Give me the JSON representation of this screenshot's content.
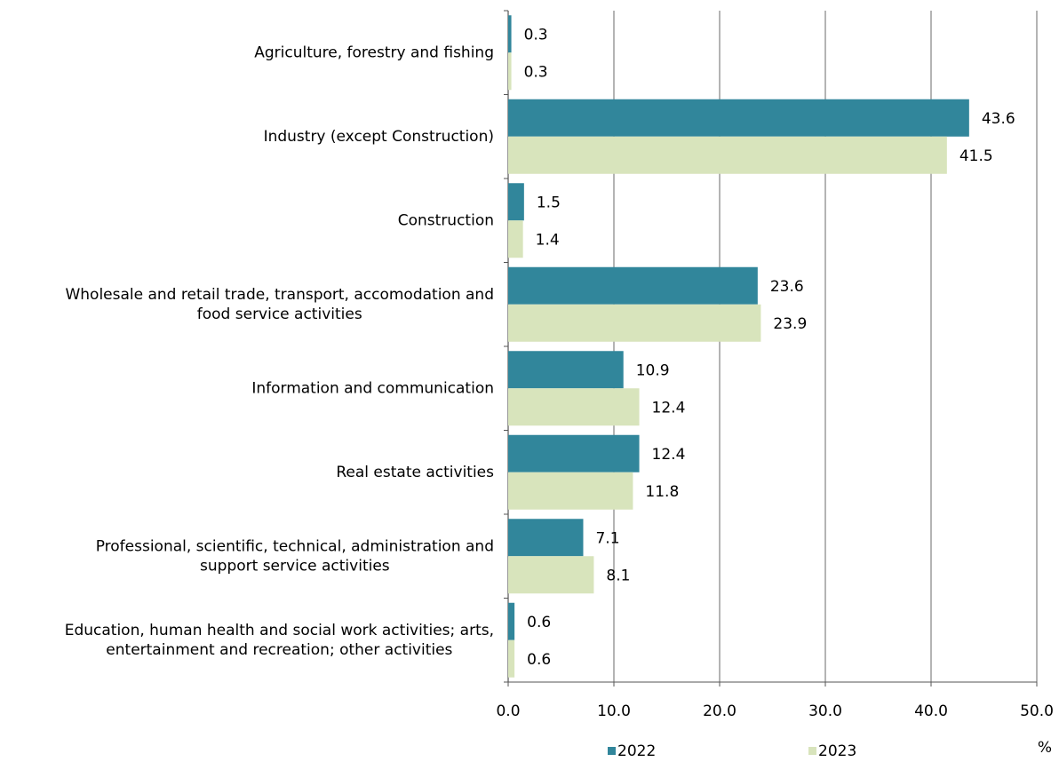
{
  "chart_data": {
    "type": "bar",
    "orientation": "horizontal",
    "categories": [
      "Agriculture, forestry and fishing",
      "Industry (except Construction)",
      "Construction",
      "Wholesale and retail trade, transport, accomodation and\nfood service activities",
      "Information and communication",
      "Real estate activities",
      "Professional, scientific, technical, administration and\nsupport service activities",
      "Education, human health and social work activities; arts,\nentertainment and recreation; other activities"
    ],
    "series": [
      {
        "name": "2022",
        "color": "#31869b",
        "values": [
          0.3,
          43.6,
          1.5,
          23.6,
          10.9,
          12.4,
          7.1,
          0.6
        ]
      },
      {
        "name": "2023",
        "color": "#d8e4bc",
        "values": [
          0.3,
          41.5,
          1.4,
          23.9,
          12.4,
          11.8,
          8.1,
          0.6
        ]
      }
    ],
    "xlim": [
      0,
      50
    ],
    "xticks": [
      {
        "value": 0,
        "label": "0.0"
      },
      {
        "value": 10,
        "label": "10.0"
      },
      {
        "value": 20,
        "label": "20.0"
      },
      {
        "value": 30,
        "label": "30.0"
      },
      {
        "value": 40,
        "label": "40.0"
      },
      {
        "value": 50,
        "label": "50.0"
      }
    ],
    "x_label": "%",
    "grid": true,
    "legend": "bottom"
  }
}
